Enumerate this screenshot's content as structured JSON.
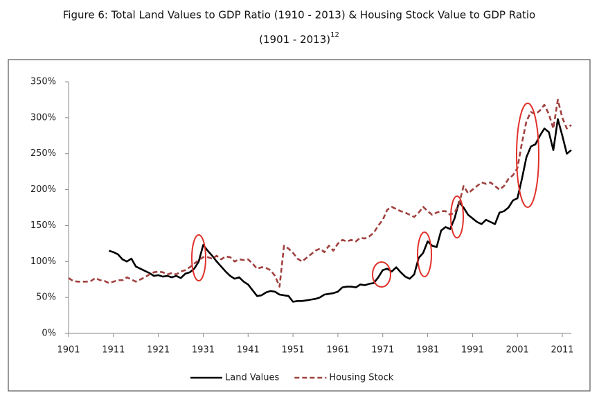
{
  "chart_data": {
    "type": "line",
    "title": [
      "Figure 6: Total Land Values to GDP Ratio (1910 - 2013) & Housing Stock Value to GDP Ratio",
      "(1901 - 2013)"
    ],
    "title_superscript": "12",
    "x": [
      1901,
      1902,
      1903,
      1904,
      1905,
      1906,
      1907,
      1908,
      1909,
      1910,
      1911,
      1912,
      1913,
      1914,
      1915,
      1916,
      1917,
      1918,
      1919,
      1920,
      1921,
      1922,
      1923,
      1924,
      1925,
      1926,
      1927,
      1928,
      1929,
      1930,
      1931,
      1932,
      1933,
      1934,
      1935,
      1936,
      1937,
      1938,
      1939,
      1940,
      1941,
      1942,
      1943,
      1944,
      1945,
      1946,
      1947,
      1948,
      1949,
      1950,
      1951,
      1952,
      1953,
      1954,
      1955,
      1956,
      1957,
      1958,
      1959,
      1960,
      1961,
      1962,
      1963,
      1964,
      1965,
      1966,
      1967,
      1968,
      1969,
      1970,
      1971,
      1972,
      1973,
      1974,
      1975,
      1976,
      1977,
      1978,
      1979,
      1980,
      1981,
      1982,
      1983,
      1984,
      1985,
      1986,
      1987,
      1988,
      1989,
      1990,
      1991,
      1992,
      1993,
      1994,
      1995,
      1996,
      1997,
      1998,
      1999,
      2000,
      2001,
      2002,
      2003,
      2004,
      2005,
      2006,
      2007,
      2008,
      2009,
      2010,
      2011,
      2012,
      2013
    ],
    "series": [
      {
        "name": "Land Values",
        "color": "#000000",
        "dashed": false,
        "values": [
          null,
          null,
          null,
          null,
          null,
          null,
          null,
          null,
          null,
          115,
          113,
          110,
          103,
          100,
          104,
          93,
          90,
          87,
          84,
          80,
          81,
          79,
          80,
          78,
          80,
          77,
          83,
          85,
          90,
          100,
          123,
          115,
          108,
          100,
          93,
          86,
          80,
          76,
          78,
          72,
          68,
          60,
          52,
          53,
          57,
          59,
          58,
          54,
          53,
          52,
          44,
          45,
          45,
          46,
          47,
          48,
          50,
          54,
          55,
          56,
          58,
          64,
          65,
          65,
          64,
          68,
          67,
          69,
          70,
          78,
          88,
          90,
          86,
          92,
          85,
          79,
          76,
          82,
          105,
          112,
          128,
          122,
          120,
          143,
          148,
          145,
          160,
          183,
          175,
          165,
          160,
          155,
          152,
          158,
          155,
          152,
          168,
          170,
          175,
          185,
          188,
          215,
          245,
          260,
          263,
          275,
          285,
          280,
          255,
          298,
          275,
          250,
          255
        ]
      },
      {
        "name": "Housing Stock",
        "color": "#a0413f",
        "dashed": true,
        "values": [
          77,
          73,
          72,
          72,
          72,
          73,
          77,
          74,
          73,
          70,
          72,
          74,
          74,
          78,
          75,
          72,
          75,
          78,
          82,
          85,
          86,
          85,
          82,
          84,
          82,
          86,
          88,
          92,
          97,
          102,
          106,
          106,
          104,
          108,
          103,
          107,
          106,
          100,
          103,
          102,
          103,
          97,
          90,
          92,
          91,
          88,
          80,
          65,
          122,
          118,
          112,
          104,
          100,
          105,
          110,
          115,
          118,
          113,
          122,
          115,
          125,
          130,
          128,
          130,
          128,
          133,
          132,
          135,
          140,
          150,
          158,
          172,
          176,
          173,
          170,
          168,
          165,
          162,
          168,
          176,
          170,
          165,
          168,
          170,
          170,
          165,
          168,
          180,
          205,
          195,
          200,
          205,
          210,
          208,
          210,
          205,
          200,
          205,
          215,
          220,
          230,
          265,
          295,
          308,
          305,
          310,
          318,
          305,
          285,
          325,
          300,
          285,
          290
        ]
      }
    ],
    "xlim": [
      1901,
      2013
    ],
    "xticks": [
      1901,
      1911,
      1921,
      1931,
      1941,
      1951,
      1961,
      1971,
      1981,
      1991,
      2001,
      2011
    ],
    "ylim": [
      0,
      350
    ],
    "yticks": [
      {
        "value": 0,
        "label": "0%"
      },
      {
        "value": 50,
        "label": "50%"
      },
      {
        "value": 100,
        "label": "100%"
      },
      {
        "value": 150,
        "label": "150%"
      },
      {
        "value": 200,
        "label": "200%"
      },
      {
        "value": 250,
        "label": "250%"
      },
      {
        "value": 300,
        "label": "300%"
      },
      {
        "value": 350,
        "label": "350%"
      }
    ],
    "grid": false,
    "legend": "bottom"
  }
}
